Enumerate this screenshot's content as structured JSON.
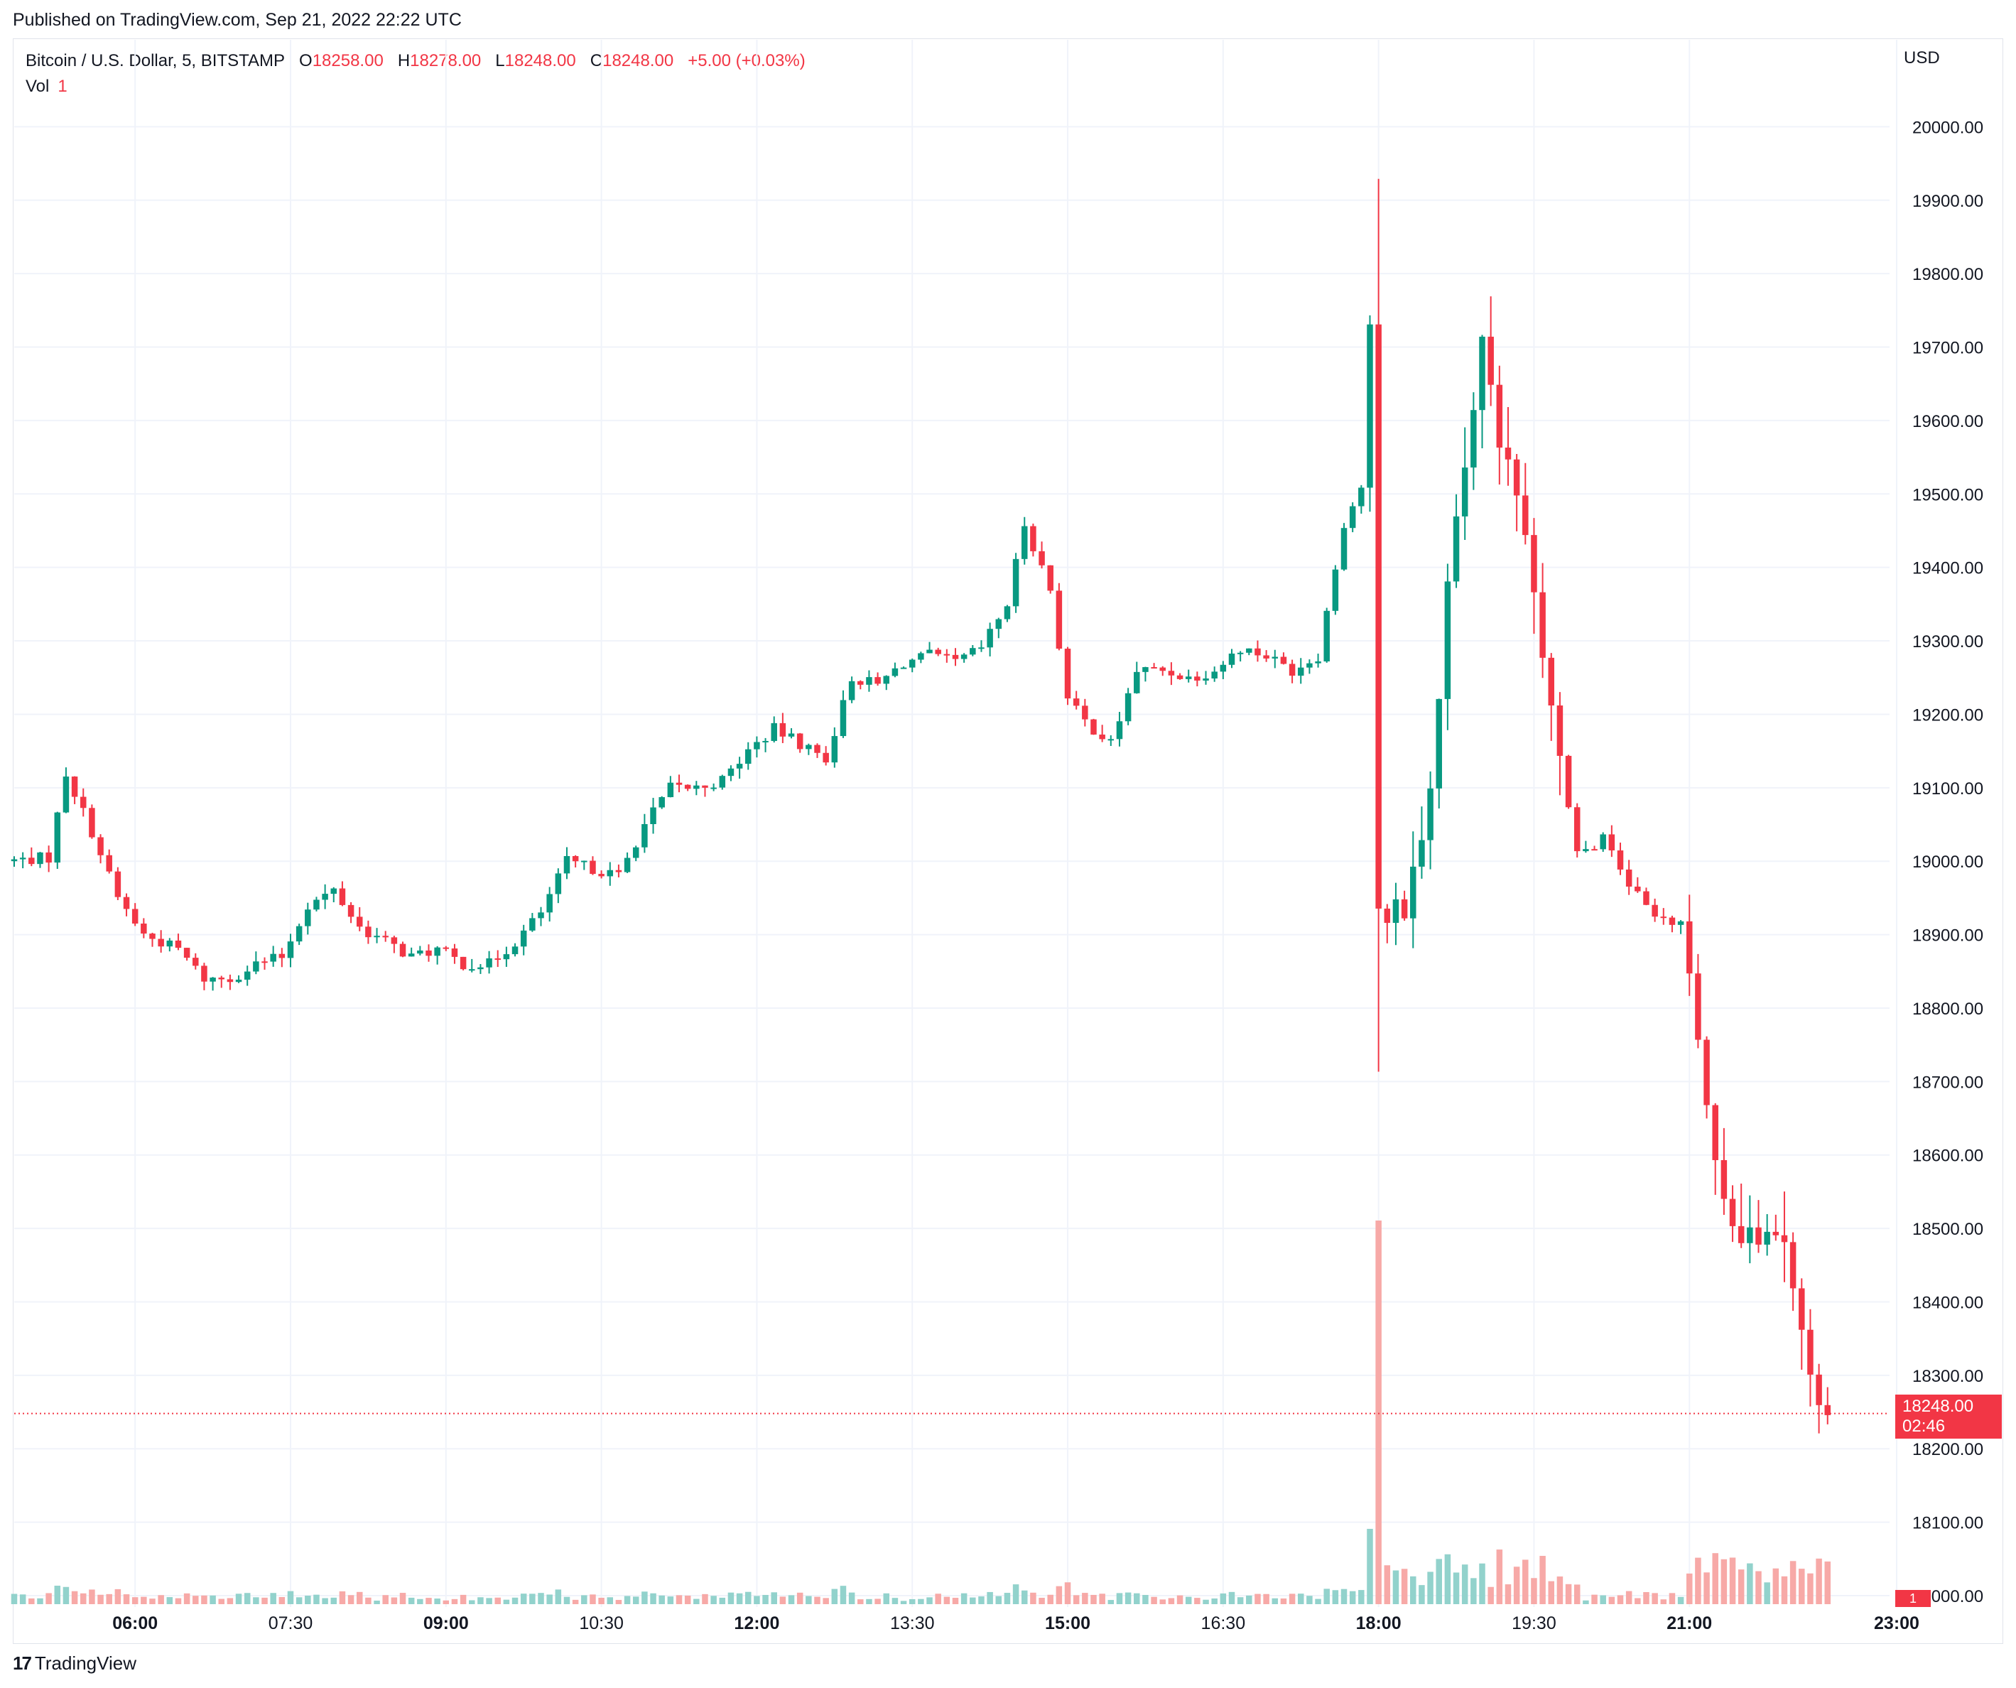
{
  "header": {
    "published": "Published on TradingView.com, Sep 21, 2022 22:22 UTC"
  },
  "legend": {
    "symbol": "Bitcoin / U.S. Dollar, 5, BITSTAMP",
    "o_label": "O",
    "o_value": "18258.00",
    "h_label": "H",
    "h_value": "18278.00",
    "l_label": "L",
    "l_value": "18248.00",
    "c_label": "C",
    "c_value": "18248.00",
    "change": "+5.00 (+0.03%)",
    "vol_label": "Vol",
    "vol_value": "1"
  },
  "axis": {
    "currency": "USD"
  },
  "price_tag": {
    "price": "18248.00",
    "countdown": "02:46"
  },
  "volume_tag": {
    "value": "1"
  },
  "footer": {
    "brand": "TradingView",
    "logo": "tradingview-logo-icon"
  },
  "colors": {
    "up": "#089981",
    "down": "#f23645",
    "up_volume": "#92d2cc",
    "down_volume": "#f7a9a7",
    "grid": "#f0f3fa"
  },
  "chart_data": {
    "type": "candlestick",
    "interval_minutes": 5,
    "ylim": [
      17994,
      20100
    ],
    "yticks": [
      18000,
      18100,
      18200,
      18300,
      18400,
      18500,
      18600,
      18700,
      18800,
      18900,
      19000,
      19100,
      19200,
      19300,
      19400,
      19500,
      19600,
      19700,
      19800,
      19900,
      20000
    ],
    "ytick_labels": [
      "18000.00",
      "18100.00",
      "18200.00",
      "18300.00",
      "18400.00",
      "18500.00",
      "18600.00",
      "18700.00",
      "18800.00",
      "18900.00",
      "19000.00",
      "19100.00",
      "19200.00",
      "19300.00",
      "19400.00",
      "19500.00",
      "19600.00",
      "19700.00",
      "19800.00",
      "19900.00",
      "20000.00"
    ],
    "x_start": "04:50",
    "x_end": "23:00",
    "xticks": [
      "06:00",
      "07:30",
      "09:00",
      "10:30",
      "12:00",
      "13:30",
      "15:00",
      "16:30",
      "18:00",
      "19:30",
      "21:00",
      "23:00"
    ],
    "xtick_bold": [
      true,
      false,
      true,
      false,
      true,
      false,
      true,
      false,
      true,
      false,
      true,
      true
    ],
    "last_price": 18248,
    "anchors": [
      [
        "04:50",
        19000
      ],
      [
        "05:15",
        19005
      ],
      [
        "05:25",
        19120
      ],
      [
        "05:40",
        19040
      ],
      [
        "05:55",
        18950
      ],
      [
        "06:10",
        18900
      ],
      [
        "06:30",
        18880
      ],
      [
        "06:45",
        18840
      ],
      [
        "07:00",
        18840
      ],
      [
        "07:15",
        18860
      ],
      [
        "07:30",
        18870
      ],
      [
        "07:45",
        18940
      ],
      [
        "08:00",
        18960
      ],
      [
        "08:15",
        18910
      ],
      [
        "08:30",
        18890
      ],
      [
        "08:45",
        18870
      ],
      [
        "09:00",
        18880
      ],
      [
        "09:15",
        18860
      ],
      [
        "09:30",
        18860
      ],
      [
        "09:45",
        18890
      ],
      [
        "10:00",
        18930
      ],
      [
        "10:15",
        19000
      ],
      [
        "10:30",
        18990
      ],
      [
        "10:45",
        18980
      ],
      [
        "11:00",
        19050
      ],
      [
        "11:15",
        19100
      ],
      [
        "11:30",
        19100
      ],
      [
        "11:45",
        19110
      ],
      [
        "12:00",
        19150
      ],
      [
        "12:15",
        19180
      ],
      [
        "12:30",
        19160
      ],
      [
        "12:45",
        19140
      ],
      [
        "13:00",
        19250
      ],
      [
        "13:15",
        19240
      ],
      [
        "13:30",
        19270
      ],
      [
        "13:45",
        19280
      ],
      [
        "14:00",
        19270
      ],
      [
        "14:15",
        19290
      ],
      [
        "14:30",
        19350
      ],
      [
        "14:40",
        19460
      ],
      [
        "14:55",
        19370
      ],
      [
        "15:05",
        19220
      ],
      [
        "15:15",
        19190
      ],
      [
        "15:30",
        19160
      ],
      [
        "15:45",
        19260
      ],
      [
        "16:00",
        19260
      ],
      [
        "16:15",
        19250
      ],
      [
        "16:30",
        19260
      ],
      [
        "16:45",
        19290
      ],
      [
        "17:00",
        19280
      ],
      [
        "17:15",
        19260
      ],
      [
        "17:30",
        19280
      ],
      [
        "17:45",
        19460
      ],
      [
        "17:55",
        19510
      ],
      [
        "18:00",
        19720
      ],
      [
        "18:05",
        18930
      ],
      [
        "18:20",
        18940
      ],
      [
        "18:35",
        19100
      ],
      [
        "18:45",
        19380
      ],
      [
        "19:00",
        19610
      ],
      [
        "19:05",
        19700
      ],
      [
        "19:15",
        19580
      ],
      [
        "19:30",
        19430
      ],
      [
        "19:45",
        19220
      ],
      [
        "20:00",
        19010
      ],
      [
        "20:15",
        19030
      ],
      [
        "20:30",
        18970
      ],
      [
        "20:45",
        18920
      ],
      [
        "21:00",
        18920
      ],
      [
        "21:05",
        18860
      ],
      [
        "21:15",
        18660
      ],
      [
        "21:30",
        18500
      ],
      [
        "21:45",
        18490
      ],
      [
        "22:00",
        18480
      ],
      [
        "22:10",
        18360
      ],
      [
        "22:20",
        18248
      ]
    ]
  }
}
